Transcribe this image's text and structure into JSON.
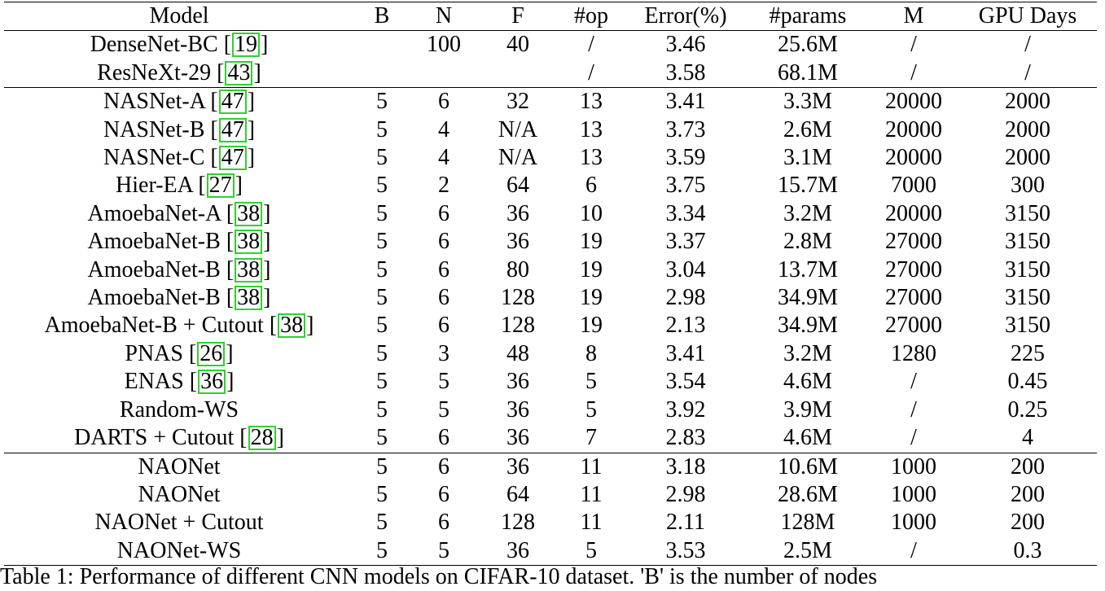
{
  "table": {
    "headers": [
      "Model",
      "B",
      "N",
      "F",
      "#op",
      "Error(%)",
      "#params",
      "M",
      "GPU Days"
    ],
    "groups": [
      [
        {
          "name": "DenseNet-BC",
          "cite": "19",
          "B": "",
          "N": "100",
          "F": "40",
          "op": "/",
          "error": "3.46",
          "params": "25.6M",
          "M": "/",
          "gpu": "/"
        },
        {
          "name": "ResNeXt-29",
          "cite": "43",
          "B": "",
          "N": "",
          "F": "",
          "op": "/",
          "error": "3.58",
          "params": "68.1M",
          "M": "/",
          "gpu": "/"
        }
      ],
      [
        {
          "name": "NASNet-A",
          "cite": "47",
          "B": "5",
          "N": "6",
          "F": "32",
          "op": "13",
          "error": "3.41",
          "params": "3.3M",
          "M": "20000",
          "gpu": "2000"
        },
        {
          "name": "NASNet-B",
          "cite": "47",
          "B": "5",
          "N": "4",
          "F": "N/A",
          "op": "13",
          "error": "3.73",
          "params": "2.6M",
          "M": "20000",
          "gpu": "2000"
        },
        {
          "name": "NASNet-C",
          "cite": "47",
          "B": "5",
          "N": "4",
          "F": "N/A",
          "op": "13",
          "error": "3.59",
          "params": "3.1M",
          "M": "20000",
          "gpu": "2000"
        },
        {
          "name": "Hier-EA",
          "cite": "27",
          "B": "5",
          "N": "2",
          "F": "64",
          "op": "6",
          "error": "3.75",
          "params": "15.7M",
          "M": "7000",
          "gpu": "300"
        },
        {
          "name": "AmoebaNet-A",
          "cite": "38",
          "B": "5",
          "N": "6",
          "F": "36",
          "op": "10",
          "error": "3.34",
          "params": "3.2M",
          "M": "20000",
          "gpu": "3150"
        },
        {
          "name": "AmoebaNet-B",
          "cite": "38",
          "B": "5",
          "N": "6",
          "F": "36",
          "op": "19",
          "error": "3.37",
          "params": "2.8M",
          "M": "27000",
          "gpu": "3150"
        },
        {
          "name": "AmoebaNet-B",
          "cite": "38",
          "B": "5",
          "N": "6",
          "F": "80",
          "op": "19",
          "error": "3.04",
          "params": "13.7M",
          "M": "27000",
          "gpu": "3150"
        },
        {
          "name": "AmoebaNet-B",
          "cite": "38",
          "B": "5",
          "N": "6",
          "F": "128",
          "op": "19",
          "error": "2.98",
          "params": "34.9M",
          "M": "27000",
          "gpu": "3150"
        },
        {
          "name": "AmoebaNet-B + Cutout",
          "cite": "38",
          "B": "5",
          "N": "6",
          "F": "128",
          "op": "19",
          "error": "2.13",
          "params": "34.9M",
          "M": "27000",
          "gpu": "3150"
        },
        {
          "name": "PNAS",
          "cite": "26",
          "B": "5",
          "N": "3",
          "F": "48",
          "op": "8",
          "error": "3.41",
          "params": "3.2M",
          "M": "1280",
          "gpu": "225"
        },
        {
          "name": "ENAS",
          "cite": "36",
          "B": "5",
          "N": "5",
          "F": "36",
          "op": "5",
          "error": "3.54",
          "params": "4.6M",
          "M": "/",
          "gpu": "0.45"
        },
        {
          "name": "Random-WS",
          "cite": "",
          "B": "5",
          "N": "5",
          "F": "36",
          "op": "5",
          "error": "3.92",
          "params": "3.9M",
          "M": "/",
          "gpu": "0.25"
        },
        {
          "name": "DARTS + Cutout",
          "cite": "28",
          "B": "5",
          "N": "6",
          "F": "36",
          "op": "7",
          "error": "2.83",
          "params": "4.6M",
          "M": "/",
          "gpu": "4"
        }
      ],
      [
        {
          "name": "NAONet",
          "cite": "",
          "B": "5",
          "N": "6",
          "F": "36",
          "op": "11",
          "error": "3.18",
          "params": "10.6M",
          "M": "1000",
          "gpu": "200"
        },
        {
          "name": "NAONet",
          "cite": "",
          "B": "5",
          "N": "6",
          "F": "64",
          "op": "11",
          "error": "2.98",
          "params": "28.6M",
          "M": "1000",
          "gpu": "200"
        },
        {
          "name": "NAONet + Cutout",
          "cite": "",
          "B": "5",
          "N": "6",
          "F": "128",
          "op": "11",
          "error": "2.11",
          "params": "128M",
          "M": "1000",
          "gpu": "200"
        },
        {
          "name": "NAONet-WS",
          "cite": "",
          "B": "5",
          "N": "5",
          "F": "36",
          "op": "5",
          "error": "3.53",
          "params": "2.5M",
          "M": "/",
          "gpu": "0.3"
        }
      ]
    ]
  },
  "caption": "Table 1: Performance of different CNN models on CIFAR-10 dataset. 'B' is the number of nodes"
}
